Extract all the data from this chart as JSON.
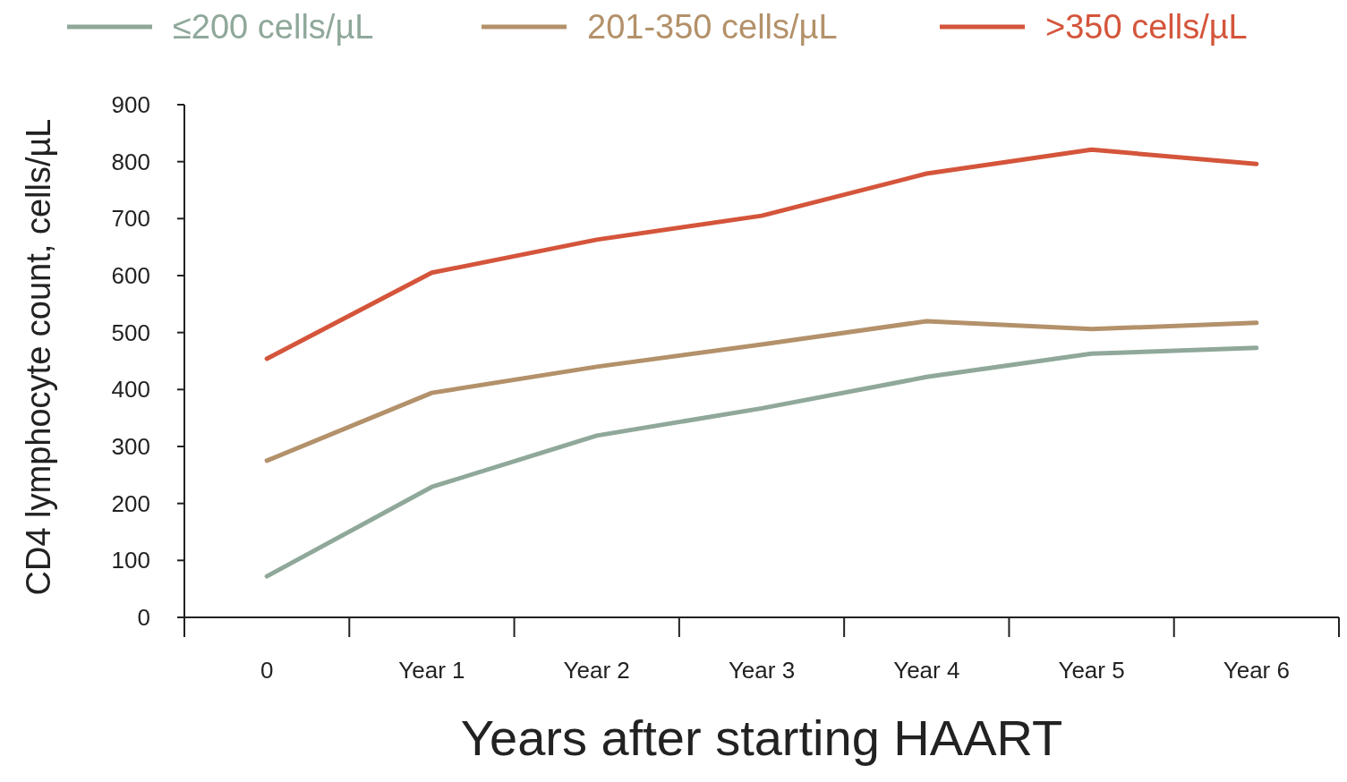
{
  "chart_data": {
    "type": "line",
    "xlabel": "Years after starting HAART",
    "ylabel": "CD4 lymphocyte count, cells/µL",
    "categories": [
      "0",
      "Year 1",
      "Year 2",
      "Year 3",
      "Year 4",
      "Year 5",
      "Year 6"
    ],
    "series": [
      {
        "name": "≤200 cells/µL",
        "color": "#8fa89a",
        "values": [
          72,
          229,
          319,
          367,
          422,
          463,
          473
        ]
      },
      {
        "name": "201-350 cells/µL",
        "color": "#b3916a",
        "values": [
          275,
          394,
          440,
          479,
          520,
          506,
          517
        ]
      },
      {
        "name": ">350 cells/µL",
        "color": "#d4553b",
        "values": [
          454,
          605,
          663,
          705,
          779,
          821,
          796
        ]
      }
    ],
    "ylim": [
      0,
      900
    ],
    "yticks": [
      0,
      100,
      200,
      300,
      400,
      500,
      600,
      700,
      800,
      900
    ],
    "legend": "top",
    "grid": false,
    "marker": "none",
    "line_style": "solid"
  }
}
